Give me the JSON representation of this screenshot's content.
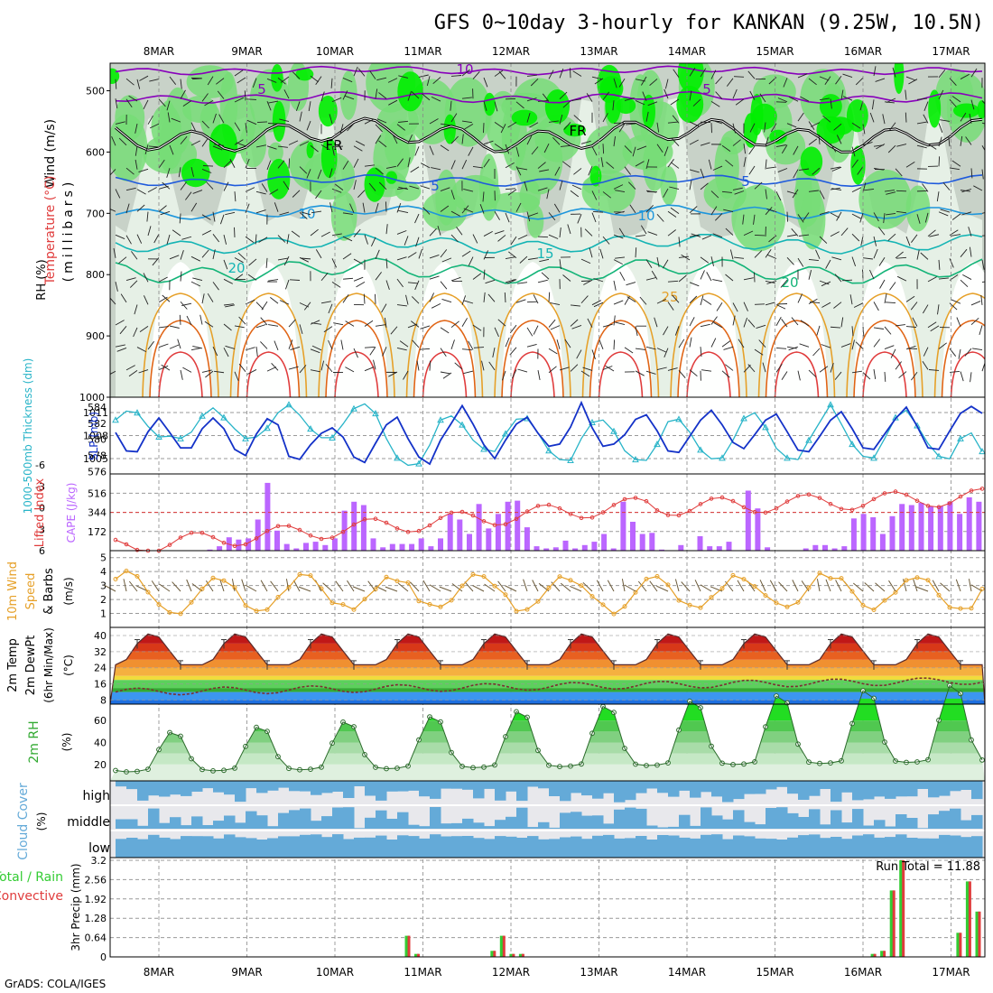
{
  "title": "GFS 0~10day 3-hourly for KANKAN (9.25W, 10.5N)",
  "footer": "GrADS: COLA/IGES",
  "days": [
    "8MAR",
    "9MAR",
    "10MAR",
    "11MAR",
    "12MAR",
    "13MAR",
    "14MAR",
    "15MAR",
    "16MAR",
    "17MAR"
  ],
  "colors": {
    "rh_dark": "#00ee00",
    "rh_mid": "#77dd77",
    "rh_light": "#c8d2c8",
    "rh_pale": "#e6f0e6",
    "temp_purple": "#8800bb",
    "temp_blue": "#1e5adc",
    "temp_lblue": "#1e96dc",
    "temp_teal": "#14b4b4",
    "temp_green": "#14b478",
    "temp_orange": "#e6a028",
    "temp_dorange": "#e06414",
    "temp_red": "#e03c3c",
    "slp": "#1432c8",
    "thickness": "#28b4c8",
    "cape": "#bb66ff",
    "lifted": "#e03c3c",
    "wind10": "#e6a028",
    "cloud": "#64aad8",
    "precip_total": "#33cc33",
    "precip_conv": "#e03c3c"
  },
  "labels": {
    "upper": {
      "wind": "Wind (m/s)",
      "temp": "Temperature (°C)",
      "rh": "RH (%)",
      "unit": "(millibars)"
    },
    "slp": {
      "thick": "1000-500mb Thickness (dm)",
      "slp": "SLP (mb)"
    },
    "cape": {
      "li": "Lifted Index",
      "cape": "CAPE (J/kg)"
    },
    "wind": {
      "l1": "10m Wind",
      "l2": "Speed",
      "l3": "& Barbs",
      "unit": "(m/s)"
    },
    "temp": {
      "l1": "2m Temp",
      "l2": "2m DewPt",
      "l3": "(6hr Min/Max)",
      "unit": "(°C)"
    },
    "rh": {
      "l1": "2m RH",
      "unit": "(%)"
    },
    "cloud": {
      "l1": "Cloud Cover",
      "unit": "(%)",
      "high": "high",
      "middle": "middle",
      "low": "low"
    },
    "precip": {
      "l1": "Total / Rain",
      "l2": "Convective",
      "unit": "3hr Precip (mm)",
      "run_total": "Run Total = 11.88"
    }
  },
  "chart_data": [
    {
      "panel": "upper-air",
      "type": "heatmap",
      "ylabel": "millibars",
      "y_ticks": [
        500,
        600,
        700,
        800,
        900,
        1000
      ],
      "contour_labels": [
        "10",
        "5",
        "5",
        "FR",
        "FR",
        "5",
        "5",
        "10",
        "10",
        "15",
        "20",
        "20",
        "25"
      ]
    },
    {
      "panel": "slp-thickness",
      "type": "line",
      "left_ticks": [
        576,
        578,
        580,
        582,
        584
      ],
      "right_ticks": [
        1005,
        1008,
        1011
      ],
      "series": [
        {
          "name": "SLP (mb)",
          "values": [
            1008.4,
            1006.0,
            1005.9,
            1008.5,
            1010.3,
            1008.4,
            1006.4,
            1006.4,
            1008.9,
            1010.3,
            1008.9,
            1006.2,
            1005.4,
            1008.2,
            1010.2,
            1009.4,
            1005.3,
            1004.9,
            1006.8,
            1008.3,
            1009.0,
            1007.8,
            1005.2,
            1004.5,
            1007.0,
            1009.4,
            1010.4,
            1007.6,
            1005.2,
            1004.3,
            1007.4,
            1009.6,
            1011.9,
            1009.5,
            1006.8,
            1005.0,
            1007.4,
            1009.5,
            1010.4,
            1008.3,
            1006.6,
            1006.9,
            1009.1,
            1012.3,
            1009.0,
            1006.6,
            1006.9,
            1008.1,
            1010.1,
            1010.7,
            1008.6,
            1006.0,
            1005.8,
            1007.9,
            1010.0,
            1011.3,
            1009.4,
            1007.1,
            1006.3,
            1008.1,
            1010.0,
            1010.8,
            1008.5,
            1006.1,
            1005.9,
            1007.9,
            1010.0,
            1011.1,
            1008.9,
            1006.4,
            1006.2,
            1008.2,
            1010.2,
            1011.7,
            1009.2,
            1006.4,
            1006.2,
            1008.6,
            1010.9,
            1011.8,
            1010.9
          ]
        },
        {
          "name": "1000-500mb Thickness (dm)",
          "values": [
            582.4,
            583.5,
            583.3,
            581.6,
            580.3,
            580.4,
            580.1,
            580.9,
            582.9,
            583.9,
            582.7,
            581.3,
            580.1,
            580.3,
            581.4,
            583.3,
            584.3,
            583.0,
            581.3,
            580.2,
            580.2,
            581.9,
            583.8,
            584.4,
            583.2,
            580.1,
            577.7,
            576.8,
            577.0,
            579.3,
            582.4,
            582.9,
            581.8,
            579.9,
            578.8,
            578.5,
            580.7,
            582.5,
            582.6,
            580.8,
            578.6,
            577.5,
            577.4,
            580.1,
            582.1,
            582.4,
            581.0,
            578.6,
            577.5,
            577.4,
            579.4,
            582.2,
            582.5,
            580.9,
            578.7,
            577.6,
            577.7,
            579.9,
            582.6,
            583.3,
            581.5,
            578.9,
            577.7,
            577.5,
            579.9,
            582.1,
            584.3,
            581.9,
            579.4,
            577.9,
            577.7,
            580.1,
            582.7,
            583.6,
            581.7,
            579.5,
            577.9,
            577.6,
            580.1,
            580.8,
            578.5
          ]
        }
      ]
    },
    {
      "panel": "cape-li",
      "type": "bar",
      "cape_ticks": [
        172,
        344,
        516
      ],
      "li_ticks": [
        6,
        3,
        0,
        -3,
        -6
      ],
      "cape_values": [
        0,
        0,
        0,
        0,
        0,
        0,
        0,
        0,
        0,
        0,
        10,
        40,
        120,
        100,
        110,
        280,
        610,
        180,
        60,
        20,
        70,
        80,
        50,
        110,
        360,
        440,
        410,
        110,
        30,
        60,
        60,
        60,
        110,
        40,
        110,
        330,
        280,
        150,
        420,
        200,
        330,
        440,
        450,
        210,
        40,
        20,
        30,
        90,
        20,
        50,
        80,
        150,
        20,
        440,
        260,
        150,
        160,
        10,
        0,
        50,
        0,
        130,
        40,
        40,
        80,
        0,
        540,
        380,
        30,
        0,
        0,
        0,
        20,
        50,
        50,
        20,
        40,
        290,
        330,
        300,
        150,
        310,
        420,
        410,
        430,
        400,
        400,
        440,
        330,
        480,
        440
      ]
    },
    {
      "panel": "wind10",
      "type": "line",
      "ylim": [
        0,
        5.5
      ],
      "y_ticks": [
        1,
        2,
        3,
        4,
        5
      ]
    },
    {
      "panel": "temp-dewpt",
      "type": "area",
      "y_ticks": [
        8,
        16,
        24,
        32,
        40
      ]
    },
    {
      "panel": "rh2m",
      "type": "area",
      "y_ticks": [
        20,
        40,
        60
      ]
    },
    {
      "panel": "cloud",
      "type": "bar",
      "layers": [
        "high",
        "middle",
        "low"
      ]
    },
    {
      "panel": "precip",
      "type": "bar",
      "y_ticks": [
        0,
        0.64,
        1.28,
        1.92,
        2.56,
        3.2
      ],
      "values": [
        0,
        0,
        0,
        0,
        0,
        0,
        0,
        0,
        0,
        0,
        0,
        0,
        0,
        0,
        0,
        0,
        0,
        0,
        0,
        0,
        0,
        0,
        0,
        0,
        0,
        0,
        0,
        0,
        0,
        0,
        0,
        0.7,
        0.1,
        0,
        0,
        0,
        0,
        0,
        0,
        0,
        0.2,
        0.7,
        0.1,
        0.1,
        0,
        0,
        0,
        0,
        0,
        0,
        0,
        0,
        0,
        0,
        0,
        0,
        0,
        0,
        0,
        0,
        0,
        0,
        0,
        0,
        0,
        0,
        0,
        0,
        0,
        0,
        0,
        0,
        0,
        0,
        0,
        0,
        0,
        0,
        0,
        0,
        0.1,
        0.2,
        2.2,
        3.2,
        0,
        0,
        0,
        0,
        0,
        0.8,
        2.5,
        1.5
      ]
    }
  ]
}
